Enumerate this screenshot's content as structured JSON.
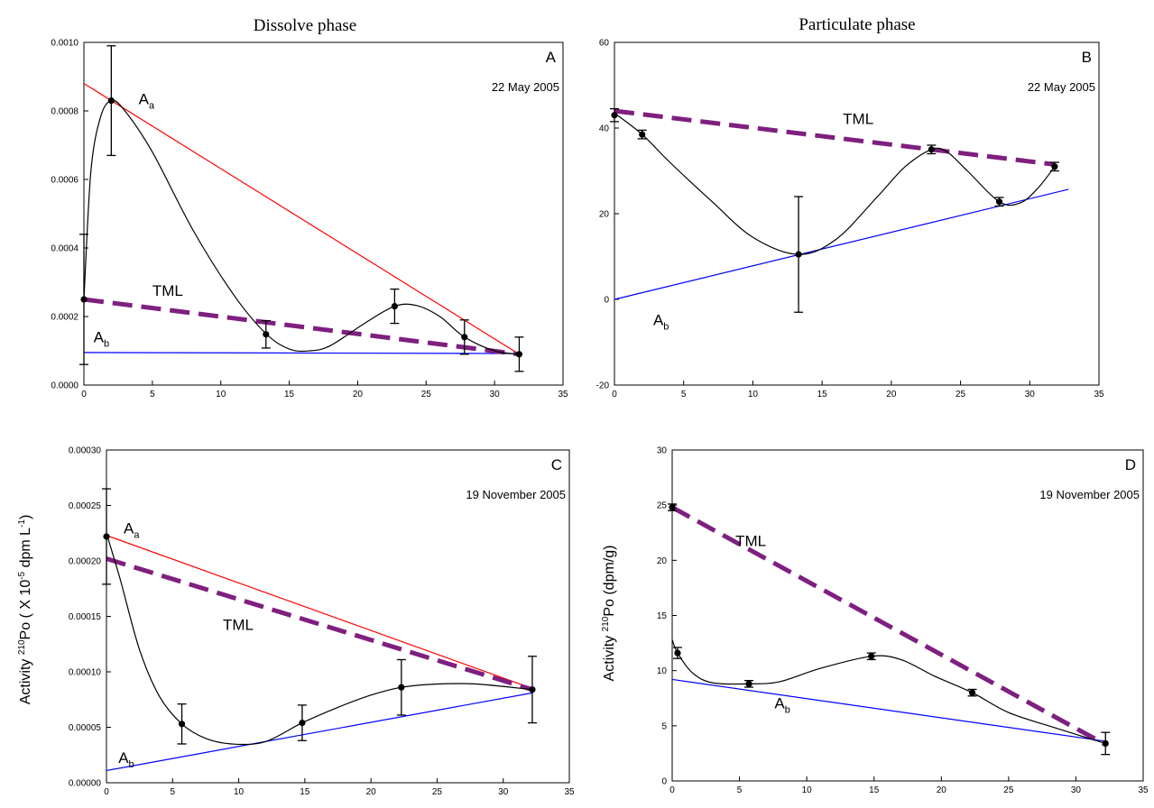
{
  "figure": {
    "column_titles": [
      "Dissolve phase",
      "Particulate phase"
    ],
    "ylabel_left": {
      "a": "Activity ",
      "sup": "210",
      "b": "Po ( X 10",
      "sup2": "-5",
      "c": " dpm L",
      "sup3": "-1",
      "d": ")"
    },
    "ylabel_right": {
      "a": "Activity ",
      "sup": "210",
      "b": "Po (dpm/g)"
    }
  },
  "chart_data": [
    {
      "panel": "A",
      "date": "22 May 2005",
      "type": "line",
      "xlim": [
        0,
        35
      ],
      "ylim": [
        0,
        0.001
      ],
      "xticks": [
        "0",
        "5",
        "10",
        "15",
        "20",
        "25",
        "30",
        "35"
      ],
      "yticks": [
        "0.0000",
        "0.0002",
        "0.0004",
        "0.0006",
        "0.0008",
        "0.0010"
      ],
      "ytick_values": [
        0,
        0.0002,
        0.0004,
        0.0006,
        0.0008,
        0.001
      ],
      "points": [
        {
          "x": 0,
          "y": 0.00025,
          "err": 0.00019
        },
        {
          "x": 2,
          "y": 0.00083,
          "err": 0.00016
        },
        {
          "x": 13.3,
          "y": 0.000148,
          "err": 4e-05
        },
        {
          "x": 22.7,
          "y": 0.00023,
          "err": 5e-05
        },
        {
          "x": 27.8,
          "y": 0.00014,
          "err": 5e-05
        },
        {
          "x": 31.8,
          "y": 9e-05,
          "err": 5e-05
        }
      ],
      "curve": [
        [
          0,
          0.00025
        ],
        [
          0.5,
          0.00062
        ],
        [
          1.2,
          0.00078
        ],
        [
          2,
          0.00083
        ],
        [
          3,
          0.0008
        ],
        [
          5,
          0.00068
        ],
        [
          8,
          0.00045
        ],
        [
          11,
          0.00026
        ],
        [
          13.3,
          0.00015
        ],
        [
          15,
          0.000105
        ],
        [
          16.5,
          0.0001
        ],
        [
          18,
          0.000115
        ],
        [
          20.5,
          0.00018
        ],
        [
          22.7,
          0.00023
        ],
        [
          24.3,
          0.000232
        ],
        [
          26,
          0.0002
        ],
        [
          27.8,
          0.00014
        ],
        [
          30,
          0.0001
        ],
        [
          31.8,
          9e-05
        ]
      ],
      "lines": [
        {
          "name": "Aa",
          "color": "#ff0000",
          "style": "thin",
          "from": [
            0,
            0.00088
          ],
          "to": [
            31.8,
            9e-05
          ]
        },
        {
          "name": "Ab",
          "color": "#0000ff",
          "style": "thin",
          "from": [
            0,
            9.5e-05
          ],
          "to": [
            31.8,
            9.2e-05
          ]
        },
        {
          "name": "TML",
          "color": "#7f1f7f",
          "style": "dashed",
          "from": [
            0,
            0.00025
          ],
          "to": [
            31.8,
            9e-05
          ]
        }
      ],
      "labels": [
        {
          "base": "A",
          "sub": "a",
          "x": 4.0,
          "y": 0.00082
        },
        {
          "base": "TML",
          "sub": "",
          "x": 5.0,
          "y": 0.00026
        },
        {
          "base": "A",
          "sub": "b",
          "x": 0.7,
          "y": 0.000125
        }
      ]
    },
    {
      "panel": "B",
      "date": "22 May 2005",
      "type": "line",
      "xlim": [
        0,
        35
      ],
      "ylim": [
        -20,
        60
      ],
      "xticks": [
        "0",
        "5",
        "10",
        "15",
        "20",
        "25",
        "30",
        "35"
      ],
      "yticks": [
        "-20",
        "0",
        "20",
        "40",
        "60"
      ],
      "ytick_values": [
        -20,
        0,
        20,
        40,
        60
      ],
      "points": [
        {
          "x": 0,
          "y": 43,
          "err": 1.5
        },
        {
          "x": 2,
          "y": 38.5,
          "err": 1
        },
        {
          "x": 13.3,
          "y": 10.5,
          "err": 13.5
        },
        {
          "x": 22.9,
          "y": 35,
          "err": 1
        },
        {
          "x": 27.8,
          "y": 22.8,
          "err": 1
        },
        {
          "x": 31.8,
          "y": 31,
          "err": 1
        }
      ],
      "curve": [
        [
          0,
          43.5
        ],
        [
          2,
          38.5
        ],
        [
          4,
          32
        ],
        [
          7,
          23
        ],
        [
          10,
          14.5
        ],
        [
          13.3,
          10.5
        ],
        [
          16,
          14
        ],
        [
          19,
          24
        ],
        [
          21,
          31
        ],
        [
          22.9,
          35
        ],
        [
          24,
          34.5
        ],
        [
          25.5,
          30
        ],
        [
          27.8,
          22.8
        ],
        [
          29.3,
          22.5
        ],
        [
          30.6,
          26
        ],
        [
          31.8,
          31
        ]
      ],
      "lines": [
        {
          "name": "Ab",
          "color": "#0000ff",
          "style": "thin",
          "from": [
            0,
            0
          ],
          "to": [
            32.8,
            25.7
          ]
        },
        {
          "name": "TML",
          "color": "#7f1f7f",
          "style": "dashed",
          "from": [
            0,
            44
          ],
          "to": [
            31.8,
            31.5
          ]
        }
      ],
      "labels": [
        {
          "base": "TML",
          "sub": "",
          "x": 16.5,
          "y": 41
        },
        {
          "base": "A",
          "sub": "b",
          "x": 2.8,
          "y": -6
        }
      ]
    },
    {
      "panel": "C",
      "date": "19 November 2005",
      "type": "line",
      "xlim": [
        0,
        35
      ],
      "ylim": [
        0,
        0.0003
      ],
      "xticks": [
        "0",
        "5",
        "10",
        "15",
        "20",
        "25",
        "30",
        "35"
      ],
      "yticks": [
        "0.00000",
        "0.00005",
        "0.00010",
        "0.00015",
        "0.00020",
        "0.00025",
        "0.00030"
      ],
      "ytick_values": [
        0,
        5e-05,
        0.0001,
        0.00015,
        0.0002,
        0.00025,
        0.0003
      ],
      "points": [
        {
          "x": 0,
          "y": 0.000222,
          "err": 4.3e-05
        },
        {
          "x": 5.7,
          "y": 5.3e-05,
          "err": 1.8e-05
        },
        {
          "x": 14.8,
          "y": 5.4e-05,
          "err": 1.6e-05
        },
        {
          "x": 22.3,
          "y": 8.6e-05,
          "err": 2.5e-05
        },
        {
          "x": 32.2,
          "y": 8.4e-05,
          "err": 3e-05
        }
      ],
      "curve": [
        [
          0,
          0.000225
        ],
        [
          1,
          0.000185
        ],
        [
          2.5,
          0.00012
        ],
        [
          4,
          7.8e-05
        ],
        [
          5.7,
          5.3e-05
        ],
        [
          7.5,
          4e-05
        ],
        [
          9.5,
          3.5e-05
        ],
        [
          12,
          3.7e-05
        ],
        [
          14.8,
          5.4e-05
        ],
        [
          17.5,
          6.8e-05
        ],
        [
          20,
          7.9e-05
        ],
        [
          22.3,
          8.6e-05
        ],
        [
          25,
          8.9e-05
        ],
        [
          28,
          8.9e-05
        ],
        [
          32.2,
          8.4e-05
        ]
      ],
      "lines": [
        {
          "name": "Aa",
          "color": "#ff0000",
          "style": "thin",
          "from": [
            0,
            0.000223
          ],
          "to": [
            32.2,
            8.5e-05
          ]
        },
        {
          "name": "Ab",
          "color": "#0000ff",
          "style": "thin",
          "from": [
            0,
            1.1e-05
          ],
          "to": [
            32.2,
            8.1e-05
          ]
        },
        {
          "name": "TML",
          "color": "#7f1f7f",
          "style": "dashed",
          "from": [
            0,
            0.000202
          ],
          "to": [
            32.2,
            8.4e-05
          ]
        }
      ],
      "labels": [
        {
          "base": "A",
          "sub": "a",
          "x": 1.3,
          "y": 0.000225
        },
        {
          "base": "TML",
          "sub": "",
          "x": 8.8,
          "y": 0.000138
        },
        {
          "base": "A",
          "sub": "b",
          "x": 0.9,
          "y": 1.8e-05
        }
      ]
    },
    {
      "panel": "D",
      "date": "19 November 2005",
      "type": "line",
      "xlim": [
        0,
        35
      ],
      "ylim": [
        0,
        30
      ],
      "xticks": [
        "0",
        "5",
        "10",
        "15",
        "20",
        "25",
        "30",
        "35"
      ],
      "yticks": [
        "0",
        "5",
        "10",
        "15",
        "20",
        "25",
        "30"
      ],
      "ytick_values": [
        0,
        5,
        10,
        15,
        20,
        25,
        30
      ],
      "points": [
        {
          "x": 0,
          "y": 24.8,
          "err": 0.3
        },
        {
          "x": 0.4,
          "y": 11.6,
          "err": 0.5
        },
        {
          "x": 5.7,
          "y": 8.8,
          "err": 0.3
        },
        {
          "x": 14.8,
          "y": 11.3,
          "err": 0.3
        },
        {
          "x": 22.3,
          "y": 8,
          "err": 0.3
        },
        {
          "x": 32.2,
          "y": 3.4,
          "err": 1
        }
      ],
      "curve": [
        [
          0,
          12.8
        ],
        [
          0.4,
          11.6
        ],
        [
          1.5,
          9.8
        ],
        [
          3,
          8.9
        ],
        [
          5.7,
          8.8
        ],
        [
          8,
          9
        ],
        [
          11,
          10.2
        ],
        [
          14.8,
          11.3
        ],
        [
          17,
          11
        ],
        [
          19.5,
          9.5
        ],
        [
          22.3,
          8
        ],
        [
          25,
          6.2
        ],
        [
          28.5,
          4.8
        ],
        [
          32.2,
          3.4
        ]
      ],
      "lines": [
        {
          "name": "Ab",
          "color": "#0000ff",
          "style": "thin",
          "from": [
            0,
            9.2
          ],
          "to": [
            32.2,
            3.6
          ]
        },
        {
          "name": "TML",
          "color": "#7f1f7f",
          "style": "dashed",
          "from": [
            0,
            24.8
          ],
          "to": [
            32.2,
            3.3
          ]
        }
      ],
      "labels": [
        {
          "base": "TML",
          "sub": "",
          "x": 4.7,
          "y": 21.3
        },
        {
          "base": "A",
          "sub": "b",
          "x": 7.6,
          "y": 6.6
        }
      ]
    }
  ]
}
